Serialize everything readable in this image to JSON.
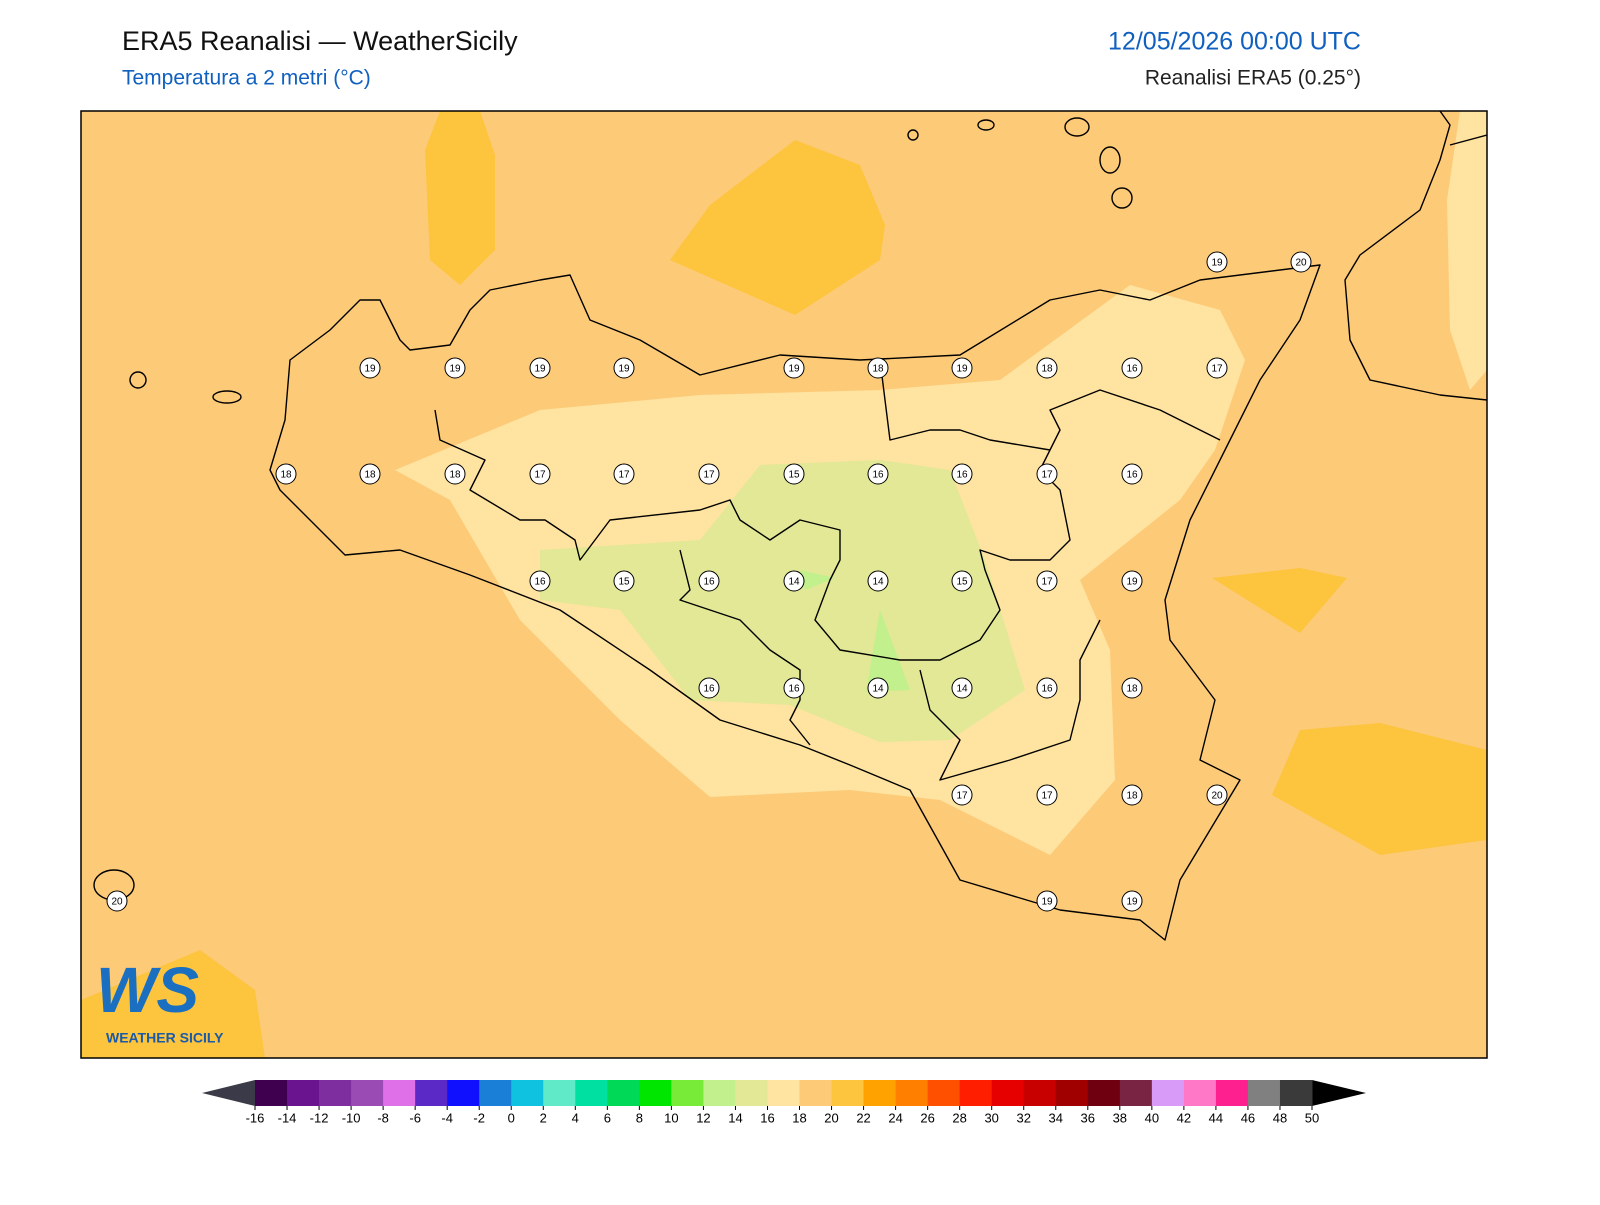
{
  "header": {
    "title": "ERA5 Reanalisi — WeatherSicily",
    "subtitle": "Temperatura a 2 metri (°C)",
    "datetime": "12/05/2026 00:00 UTC",
    "source": "Reanalisi ERA5 (0.25°)"
  },
  "stations": [
    19,
    19,
    19,
    19,
    19,
    18,
    19,
    18,
    16,
    17,
    19,
    20,
    18,
    18,
    18,
    17,
    17,
    17,
    15,
    16,
    16,
    17,
    16,
    16,
    15,
    16,
    14,
    14,
    15,
    17,
    19,
    16,
    16,
    14,
    14,
    16,
    18,
    17,
    17,
    18,
    20,
    20,
    19,
    19
  ],
  "colorbar": {
    "ticks": [
      -16,
      -14,
      -12,
      -10,
      -8,
      -6,
      -4,
      -2,
      0,
      2,
      4,
      6,
      8,
      10,
      12,
      14,
      16,
      18,
      20,
      22,
      24,
      26,
      28,
      30,
      32,
      34,
      36,
      38,
      40,
      42,
      44,
      46,
      48,
      50
    ],
    "colors": [
      "#3f0050",
      "#6a1490",
      "#7e2e9e",
      "#9a4cb4",
      "#e070e8",
      "#5b2ac6",
      "#1010ff",
      "#1a7fd6",
      "#0fc2e0",
      "#60eac8",
      "#00e0a0",
      "#00d858",
      "#00e600",
      "#78ea38",
      "#c2f08c",
      "#e2e896",
      "#ffe3a0",
      "#fdca78",
      "#fdc43e",
      "#ffa200",
      "#ff8000",
      "#ff5000",
      "#ff1e00",
      "#e60000",
      "#c80000",
      "#a00000",
      "#6e0010",
      "#7a2444",
      "#d89cf8",
      "#ff78c8",
      "#ff2090",
      "#808080",
      "#3a3a3a"
    ],
    "under_color": "#3a3a48",
    "over_color": "#000000"
  },
  "logo": {
    "mark": "WS",
    "text": "WEATHER SICILY"
  }
}
